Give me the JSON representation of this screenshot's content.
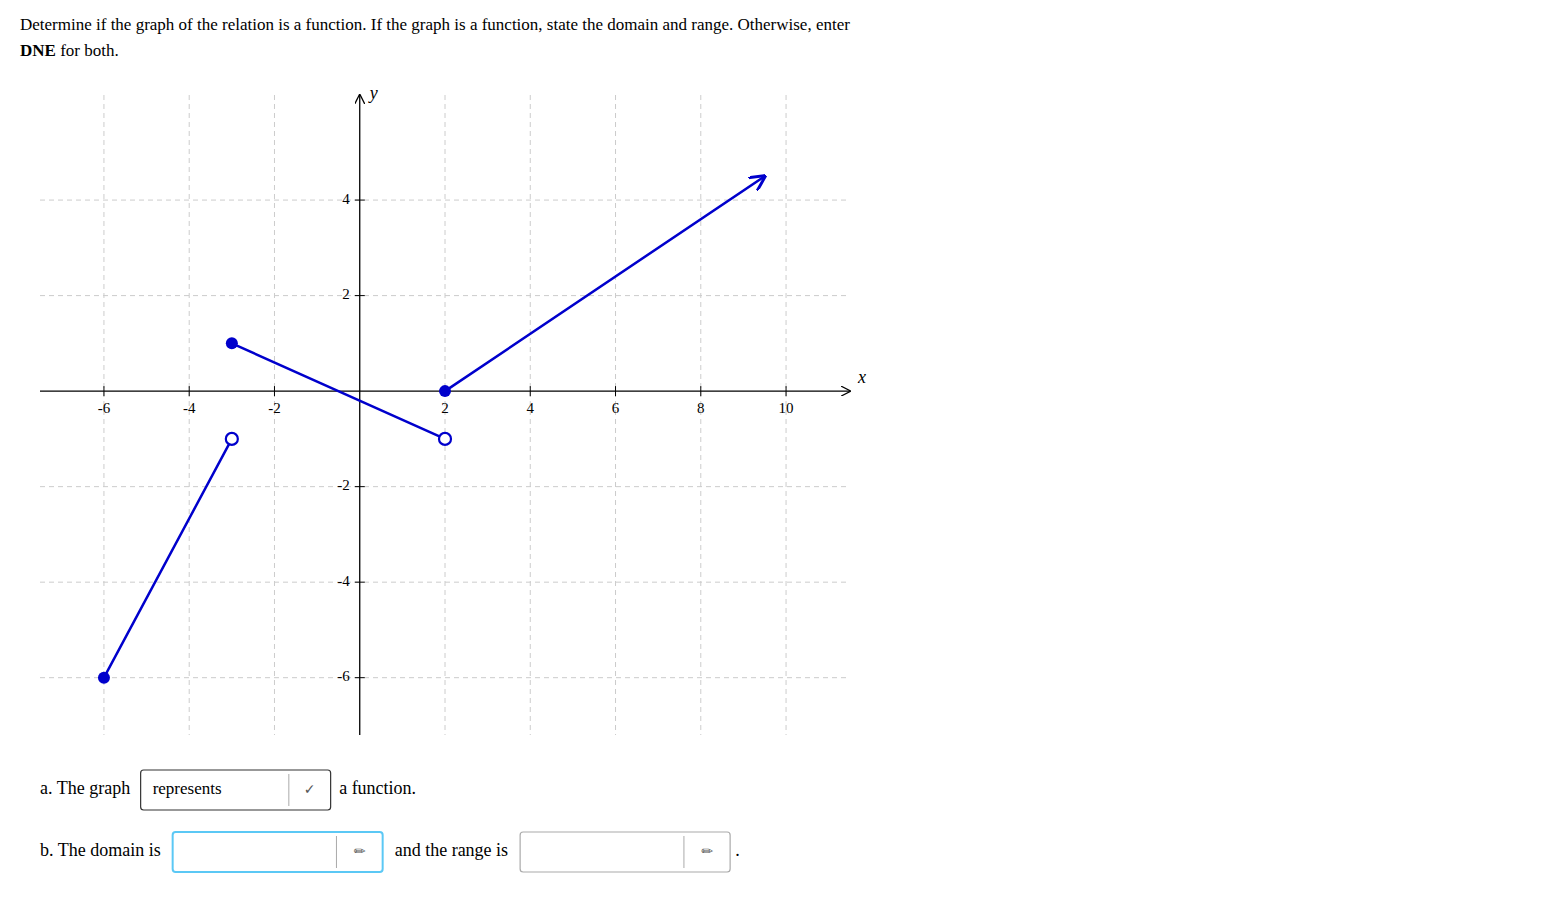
{
  "chart_data": {
    "type": "line",
    "title": "Determine if the graph of the relation is a function. If the graph is a function, state the domain and range. Otherwise, enter",
    "subtitle": [
      "DNE",
      " for both."
    ],
    "xlabel": "x",
    "ylabel": "y",
    "xlim": [
      -7.5,
      11.5
    ],
    "ylim": [
      -7.2,
      6.2
    ],
    "xticks": [
      -6,
      -4,
      -2,
      2,
      4,
      6,
      8,
      10
    ],
    "yticks": [
      -6,
      -4,
      -2,
      2,
      4
    ],
    "grid": true,
    "series": [
      {
        "type": "line",
        "color": "#0000cc",
        "x": [
          -6,
          -3
        ],
        "values": [
          -6,
          -1
        ]
      },
      {
        "type": "line",
        "color": "#0000cc",
        "x": [
          -3,
          2
        ],
        "values": [
          1,
          -1
        ]
      },
      {
        "type": "line",
        "color": "#0000cc",
        "marker": "arrow",
        "x": [
          2,
          9.5
        ],
        "values": [
          0,
          4.5
        ]
      },
      {
        "type": "scatter",
        "color": "#0000cc",
        "marker": "filled",
        "x": [
          -6,
          -3,
          2
        ],
        "values": [
          -6,
          1,
          0
        ]
      },
      {
        "type": "scatter",
        "color": "#0000cc",
        "marker": "open",
        "x": [
          -3,
          2
        ],
        "values": [
          -1,
          -1
        ]
      }
    ],
    "annotations": [
      [
        "a. The graph ",
        "represents",
        "✓",
        " a function."
      ],
      [
        "b. The domain is",
        "✏",
        "and the range is",
        "✏",
        "."
      ]
    ]
  }
}
